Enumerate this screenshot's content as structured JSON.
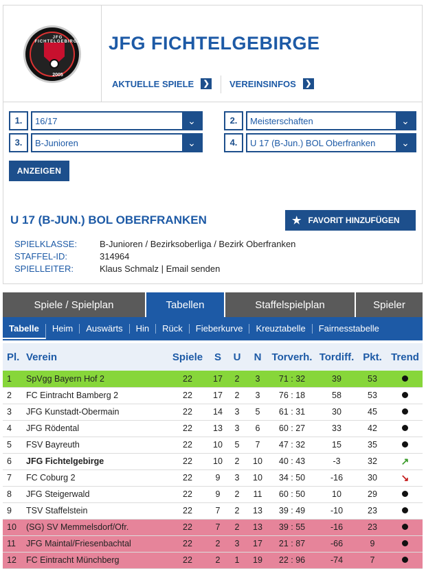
{
  "header": {
    "club_name": "JFG FICHTELGEBIRGE",
    "logo_text_top": "JFG FICHTELGEBIRGE",
    "logo_year": "2005",
    "nav": [
      {
        "label": "AKTUELLE SPIELE"
      },
      {
        "label": "VEREINSINFOS"
      }
    ]
  },
  "filters": [
    {
      "num": "1.",
      "value": "16/17"
    },
    {
      "num": "2.",
      "value": "Meisterschaften"
    },
    {
      "num": "3.",
      "value": "B-Junioren"
    },
    {
      "num": "4.",
      "value": "U 17 (B-Jun.) BOL Oberfranken"
    }
  ],
  "show_button": "ANZEIGEN",
  "league": {
    "title": "U 17 (B-JUN.) BOL OBERFRANKEN",
    "favorite_button": "FAVORIT HINZUFÜGEN",
    "info": [
      {
        "key": "SPIELKLASSE:",
        "value": "B-Junioren / Bezirksoberliga / Bezirk Oberfranken"
      },
      {
        "key": "STAFFEL-ID:",
        "value": "314964"
      },
      {
        "key": "SPIELLEITER:",
        "value": "Klaus Schmalz | Email senden"
      }
    ]
  },
  "main_tabs": [
    {
      "label": "Spiele / Spielplan"
    },
    {
      "label": "Tabellen"
    },
    {
      "label": "Staffelspielplan"
    },
    {
      "label": "Spieler"
    }
  ],
  "sub_tabs": [
    {
      "label": "Tabelle"
    },
    {
      "label": "Heim"
    },
    {
      "label": "Auswärts"
    },
    {
      "label": "Hin"
    },
    {
      "label": "Rück"
    },
    {
      "label": "Fieberkurve"
    },
    {
      "label": "Kreuztabelle"
    },
    {
      "label": "Fairnesstabelle"
    }
  ],
  "table": {
    "headers": [
      "Pl.",
      "Verein",
      "Spiele",
      "S",
      "U",
      "N",
      "Torverh.",
      "Tordiff.",
      "Pkt.",
      "Trend"
    ],
    "rows": [
      {
        "pl": "1",
        "team": "SpVgg Bayern Hof 2",
        "sp": "22",
        "s": "17",
        "u": "2",
        "n": "3",
        "tv": "71 : 32",
        "td": "39",
        "pkt": "53",
        "trend": "dot"
      },
      {
        "pl": "2",
        "team": "FC Eintracht Bamberg 2",
        "sp": "22",
        "s": "17",
        "u": "2",
        "n": "3",
        "tv": "76 : 18",
        "td": "58",
        "pkt": "53",
        "trend": "dot"
      },
      {
        "pl": "3",
        "team": "JFG Kunstadt-Obermain",
        "sp": "22",
        "s": "14",
        "u": "3",
        "n": "5",
        "tv": "61 : 31",
        "td": "30",
        "pkt": "45",
        "trend": "dot"
      },
      {
        "pl": "4",
        "team": "JFG Rödental",
        "sp": "22",
        "s": "13",
        "u": "3",
        "n": "6",
        "tv": "60 : 27",
        "td": "33",
        "pkt": "42",
        "trend": "dot"
      },
      {
        "pl": "5",
        "team": "FSV Bayreuth",
        "sp": "22",
        "s": "10",
        "u": "5",
        "n": "7",
        "tv": "47 : 32",
        "td": "15",
        "pkt": "35",
        "trend": "dot"
      },
      {
        "pl": "6",
        "team": "JFG Fichtelgebirge",
        "sp": "22",
        "s": "10",
        "u": "2",
        "n": "10",
        "tv": "40 : 43",
        "td": "-3",
        "pkt": "32",
        "trend": "up"
      },
      {
        "pl": "7",
        "team": "FC Coburg 2",
        "sp": "22",
        "s": "9",
        "u": "3",
        "n": "10",
        "tv": "34 : 50",
        "td": "-16",
        "pkt": "30",
        "trend": "down"
      },
      {
        "pl": "8",
        "team": "JFG Steigerwald",
        "sp": "22",
        "s": "9",
        "u": "2",
        "n": "11",
        "tv": "60 : 50",
        "td": "10",
        "pkt": "29",
        "trend": "dot"
      },
      {
        "pl": "9",
        "team": "TSV Staffelstein",
        "sp": "22",
        "s": "7",
        "u": "2",
        "n": "13",
        "tv": "39 : 49",
        "td": "-10",
        "pkt": "23",
        "trend": "dot"
      },
      {
        "pl": "10",
        "team": "(SG) SV Memmelsdorf/Ofr.",
        "sp": "22",
        "s": "7",
        "u": "2",
        "n": "13",
        "tv": "39 : 55",
        "td": "-16",
        "pkt": "23",
        "trend": "dot"
      },
      {
        "pl": "11",
        "team": "JFG Maintal/Friesenbachtal",
        "sp": "22",
        "s": "2",
        "u": "3",
        "n": "17",
        "tv": "21 : 87",
        "td": "-66",
        "pkt": "9",
        "trend": "dot"
      },
      {
        "pl": "12",
        "team": "FC Eintracht Münchberg",
        "sp": "22",
        "s": "2",
        "u": "1",
        "n": "19",
        "tv": "22 : 96",
        "td": "-74",
        "pkt": "7",
        "trend": "dot"
      }
    ]
  },
  "colors": {
    "accent": "#1d5aa6",
    "dark_blue": "#1d4f8c",
    "promotion": "#87d63a",
    "relegation": "#e6849a",
    "tab_grey": "#5a5a5a"
  }
}
